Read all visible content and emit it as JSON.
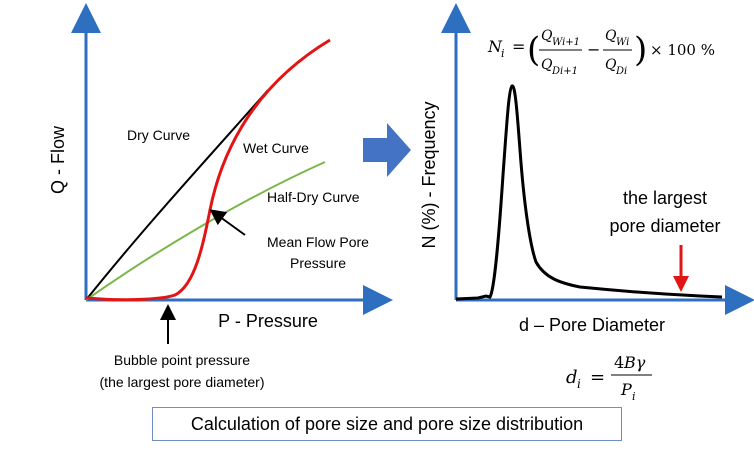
{
  "left_chart": {
    "y_axis_label": "Q - Flow",
    "x_axis_label": "P - Pressure",
    "curves": {
      "dry": "Dry Curve",
      "wet": "Wet Curve",
      "half_dry": "Half-Dry Curve"
    },
    "annotations": {
      "mean_flow_line1": "Mean Flow Pore",
      "mean_flow_line2": "Pressure",
      "bubble_line1": "Bubble point pressure",
      "bubble_line2": "(the largest pore diameter)"
    }
  },
  "right_chart": {
    "y_axis_label": "N (%) - Frequency",
    "x_axis_label": "d – Pore Diameter",
    "annotation_line1": "the largest",
    "annotation_line2": "pore diameter",
    "formula_N": "N_i = (Q_Wi+1 / Q_Di+1 − Q_Wi / Q_Di) × 100 %",
    "formula_d": "d_i = 4Bγ / P_i"
  },
  "caption": "Calculation of pore size and pore size distribution",
  "colors": {
    "axis": "#2e6fc0",
    "dry_curve": "#000000",
    "wet_curve": "#e31414",
    "half_dry_curve": "#7ab648",
    "big_arrow": "#4472c4",
    "marker_arrow": "#e31414",
    "caption_border": "#6f8fc4"
  },
  "icons": {
    "process_arrow": "right-block-arrow",
    "bubble_arrow": "up-arrow",
    "mean_flow_arrow": "pointer-arrow",
    "largest_pore_arrow": "down-arrow"
  }
}
